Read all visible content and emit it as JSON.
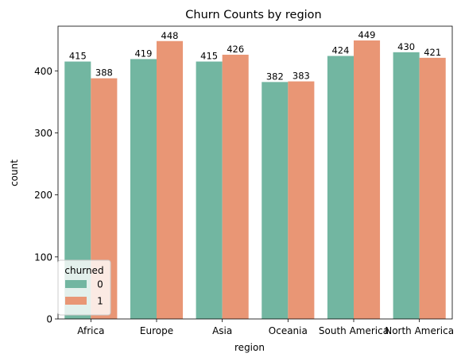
{
  "chart_data": {
    "type": "bar",
    "title": "Churn Counts by region",
    "xlabel": "region",
    "ylabel": "count",
    "categories": [
      "Africa",
      "Europe",
      "Asia",
      "Oceania",
      "South America",
      "North America"
    ],
    "series": [
      {
        "name": "0",
        "color": "#72b6a1",
        "values": [
          415,
          419,
          415,
          382,
          424,
          430
        ]
      },
      {
        "name": "1",
        "color": "#e99675",
        "values": [
          388,
          448,
          426,
          383,
          449,
          421
        ]
      }
    ],
    "ylim": [
      0,
      472
    ],
    "yticks": [
      0,
      100,
      200,
      300,
      400
    ],
    "grid": false,
    "legend": {
      "title": "churned",
      "position": "lower-left"
    }
  }
}
